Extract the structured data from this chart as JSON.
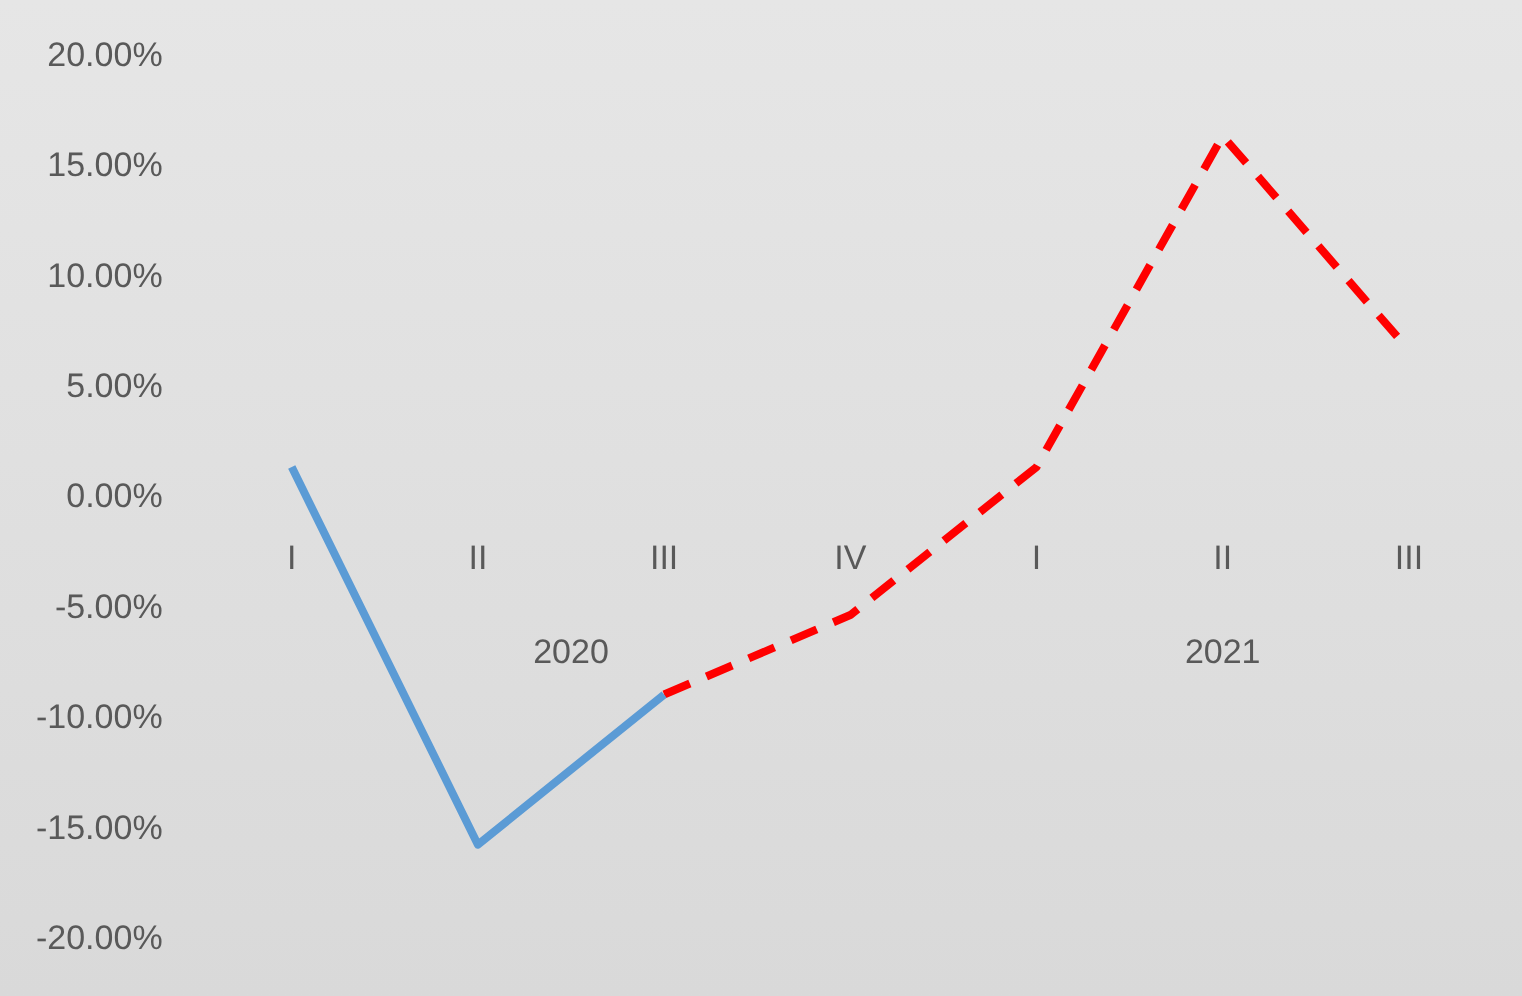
{
  "chart_data": {
    "type": "line",
    "categories": [
      "I",
      "II",
      "III",
      "IV",
      "I",
      "II",
      "III"
    ],
    "series": [
      {
        "color": "#5b9bd5",
        "line_style": "solid",
        "values": [
          1.4,
          -15.7,
          -8.9,
          null,
          null,
          null,
          null
        ]
      },
      {
        "color": "#ff0000",
        "line_style": "dashed",
        "values": [
          null,
          null,
          -8.9,
          -5.3,
          1.4,
          16.4,
          6.7
        ]
      }
    ],
    "ylim": [
      -20,
      20
    ],
    "yticks": [
      {
        "value": -20,
        "label": "-20.00%"
      },
      {
        "value": -15,
        "label": "-15.00%"
      },
      {
        "value": -10,
        "label": "-10.00%"
      },
      {
        "value": -5,
        "label": "-5.00%"
      },
      {
        "value": 0,
        "label": "0.00%"
      },
      {
        "value": 5,
        "label": "5.00%"
      },
      {
        "value": 10,
        "label": "10.00%"
      },
      {
        "value": 15,
        "label": "15.00%"
      },
      {
        "value": 20,
        "label": "20.00%"
      }
    ],
    "annotations": [
      "2020",
      "2021"
    ],
    "grid": false,
    "legend": false,
    "marker": "none"
  }
}
